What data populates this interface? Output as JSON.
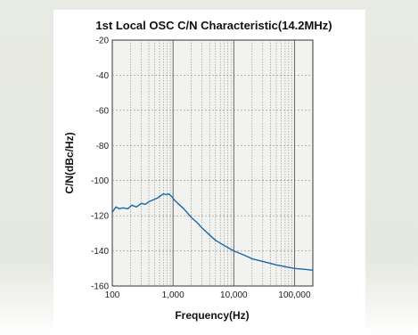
{
  "colors": {
    "background": "#e7eae2",
    "panel": "#ffffff",
    "plot_bg": "#f2f3f0",
    "grid": "#8a8a8a",
    "axis": "#333333",
    "line": "#1a66a8"
  },
  "chart_data": {
    "type": "line",
    "title": "1st Local OSC C/N Characteristic(14.2MHz)",
    "xlabel": "Frequency(Hz)",
    "ylabel": "C/N(dBc/Hz)",
    "xscale": "log",
    "xlim": [
      100,
      200000
    ],
    "ylim": [
      -160,
      -20
    ],
    "grid": true,
    "x_ticks": [
      {
        "value": 100,
        "label": "100"
      },
      {
        "value": 1000,
        "label": "1,000"
      },
      {
        "value": 10000,
        "label": "10,000"
      },
      {
        "value": 100000,
        "label": "100,000"
      }
    ],
    "y_ticks": [
      {
        "value": -20,
        "label": "-20"
      },
      {
        "value": -40,
        "label": "-40"
      },
      {
        "value": -60,
        "label": "-60"
      },
      {
        "value": -80,
        "label": "-80"
      },
      {
        "value": -100,
        "label": "-100"
      },
      {
        "value": -120,
        "label": "-120"
      },
      {
        "value": -140,
        "label": "-140"
      },
      {
        "value": -160,
        "label": "-160"
      }
    ],
    "series": [
      {
        "x": [
          100,
          115,
          130,
          150,
          180,
          210,
          250,
          300,
          350,
          400,
          470,
          550,
          630,
          700,
          770,
          850,
          950,
          1050,
          1200,
          1500,
          2000,
          2500,
          3000,
          4000,
          5000,
          7000,
          10000,
          15000,
          20000,
          30000,
          50000,
          70000,
          100000,
          150000,
          200000
        ],
        "y": [
          -118,
          -115,
          -116,
          -115.5,
          -116,
          -114,
          -115,
          -113,
          -113.5,
          -112,
          -111,
          -110,
          -108.5,
          -107.5,
          -108,
          -107.5,
          -109,
          -111,
          -113,
          -116,
          -121,
          -124,
          -127,
          -131,
          -134,
          -137,
          -140,
          -142.5,
          -144.5,
          -146,
          -148,
          -149,
          -150,
          -150.5,
          -151
        ]
      }
    ]
  }
}
